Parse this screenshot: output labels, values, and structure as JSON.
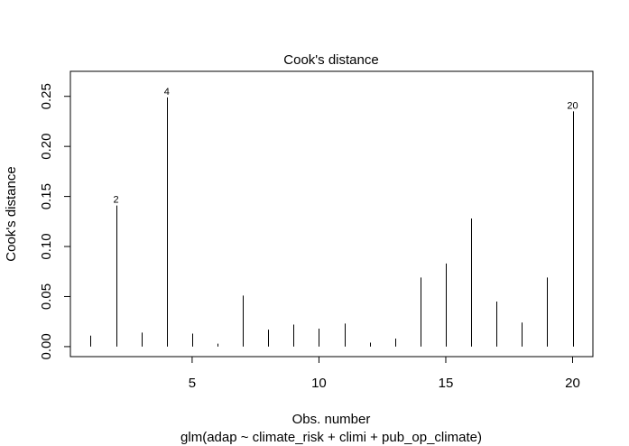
{
  "chart_data": {
    "type": "bar",
    "title": "Cook's distance",
    "xlabel": "Obs. number",
    "ylabel": "Cook's distance",
    "subtitle": "glm(adap ~ climate_risk + climi + pub_op_climate)",
    "x": [
      1,
      2,
      3,
      4,
      5,
      6,
      7,
      8,
      9,
      10,
      11,
      12,
      13,
      14,
      15,
      16,
      17,
      18,
      19,
      20
    ],
    "values": [
      0.011,
      0.141,
      0.014,
      0.249,
      0.013,
      0.003,
      0.051,
      0.017,
      0.022,
      0.018,
      0.023,
      0.004,
      0.008,
      0.069,
      0.083,
      0.128,
      0.045,
      0.024,
      0.069,
      0.235
    ],
    "labels": [
      {
        "x": 2,
        "text": "2"
      },
      {
        "x": 4,
        "text": "4"
      },
      {
        "x": 20,
        "text": "20"
      }
    ],
    "xlim": [
      0.2,
      20.8
    ],
    "ylim": [
      -0.01,
      0.275
    ],
    "xticks": [
      5,
      10,
      15,
      20
    ],
    "xtick_labels": [
      "5",
      "10",
      "15",
      "20"
    ],
    "yticks": [
      0,
      0.05,
      0.1,
      0.15,
      0.2,
      0.25
    ],
    "ytick_labels": [
      "0.00",
      "0.05",
      "0.10",
      "0.15",
      "0.20",
      "0.25"
    ],
    "grid": false,
    "line_color": "#000000"
  }
}
